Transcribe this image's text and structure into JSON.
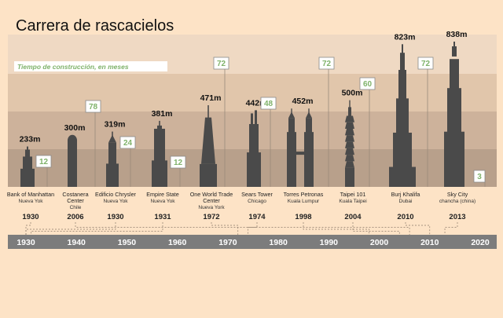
{
  "title": "Carrera de rascacielos",
  "legend_label": "Tiempo de construcción, en meses",
  "colors": {
    "background": "#fde3c6",
    "band1": "#efd9c3",
    "band2": "#e1c6ab",
    "band3": "#cdb29b",
    "band4": "#b8a08b",
    "tower": "#4a4a4a",
    "month_box_text": "#7fb26a",
    "timeline_bar": "#7c7c7c",
    "timeline_text": "#ffffff"
  },
  "chart_data": {
    "type": "bar",
    "title": "Carrera de rascacielos",
    "xlabel": "",
    "ylabel": "",
    "ylim": [
      0,
      838
    ],
    "buildings": [
      {
        "name": "Bank of Manhattan",
        "location": "Nueva Yok",
        "height": "233m",
        "height_m": 233,
        "year": "1930",
        "months": "12"
      },
      {
        "name": "Costanera Center",
        "location": "Chile",
        "height": "300m",
        "height_m": 300,
        "year": "2006",
        "months": "78"
      },
      {
        "name": "Edificio Chrysler",
        "location": "Nueva Yok",
        "height": "319m",
        "height_m": 319,
        "year": "1930",
        "months": "24"
      },
      {
        "name": "Empire State",
        "location": "Nueva Yok",
        "height": "381m",
        "height_m": 381,
        "year": "1931",
        "months": "12"
      },
      {
        "name": "One World Trade Center",
        "location": "Nueva York",
        "height": "471m",
        "height_m": 471,
        "year": "1972",
        "months": "72"
      },
      {
        "name": "Sears Tower",
        "location": "Chicago",
        "height": "442m",
        "height_m": 442,
        "year": "1974",
        "months": "48"
      },
      {
        "name": "Torres Petronas",
        "location": "Kuala Lumpur",
        "height": "452m",
        "height_m": 452,
        "year": "1998",
        "months": "72"
      },
      {
        "name": "Taipei 101",
        "location": "Kuala Taipei",
        "height": "500m",
        "height_m": 500,
        "year": "2004",
        "months": "60"
      },
      {
        "name": "Burj Khalifa",
        "location": "Dubai",
        "height": "823m",
        "height_m": 823,
        "year": "2010",
        "months": "72"
      },
      {
        "name": "Sky City",
        "location": "chancha (china)",
        "height": "838m",
        "height_m": 838,
        "year": "2013",
        "months": "3"
      }
    ],
    "timeline": {
      "range": [
        1930,
        2020
      ],
      "ticks": [
        "1930",
        "1940",
        "1950",
        "1960",
        "1970",
        "1980",
        "1990",
        "2000",
        "2010",
        "2020"
      ]
    }
  }
}
